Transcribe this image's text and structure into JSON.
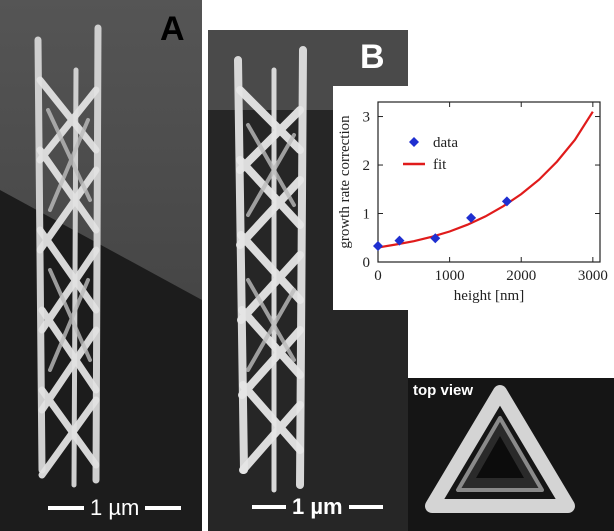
{
  "figure": {
    "panel_a": {
      "letter": "A",
      "scale_bar": "1 µm"
    },
    "panel_b": {
      "letter": "B",
      "scale_bar": "1 µm"
    },
    "top_view": {
      "label": "top view"
    }
  },
  "colors": {
    "data_marker": "#1f2fd0",
    "fit_line": "#e01b1b"
  },
  "chart_data": {
    "type": "scatter",
    "title": "",
    "xlabel": "height [nm]",
    "ylabel": "growth rate correction",
    "xlim": [
      0,
      3100
    ],
    "ylim": [
      0,
      3.3
    ],
    "xticks": [
      0,
      1000,
      2000,
      3000
    ],
    "yticks": [
      0,
      1,
      2,
      3
    ],
    "grid": false,
    "legend_position": "top-left",
    "series": [
      {
        "name": "data",
        "kind": "markers",
        "marker": "diamond",
        "x": [
          0,
          300,
          800,
          1300,
          1800
        ],
        "y": [
          0.33,
          0.44,
          0.49,
          0.91,
          1.25
        ]
      },
      {
        "name": "fit",
        "kind": "line",
        "x": [
          0,
          250,
          500,
          750,
          1000,
          1250,
          1500,
          1750,
          2000,
          2250,
          2500,
          2750,
          3000
        ],
        "y": [
          0.3,
          0.36,
          0.43,
          0.52,
          0.63,
          0.77,
          0.94,
          1.15,
          1.4,
          1.7,
          2.07,
          2.52,
          3.1
        ]
      }
    ]
  }
}
